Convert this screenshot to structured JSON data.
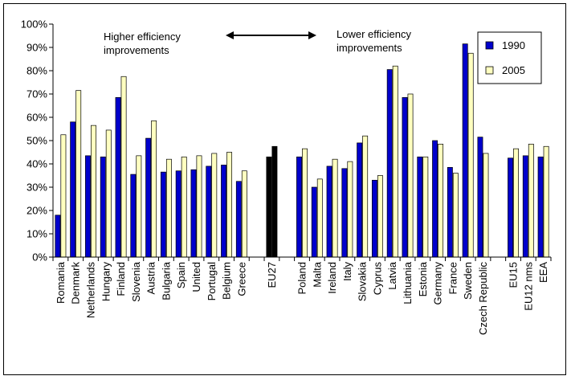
{
  "chart_data": {
    "type": "bar",
    "categories": [
      "Romania",
      "Denmark",
      "Netherlands",
      "Hungary",
      "Finland",
      "Slovenia",
      "Austria",
      "Bulgaria",
      "Spain",
      "United",
      "Portugal",
      "Belgium",
      "Greece",
      "",
      "EU27",
      "",
      "Poland",
      "Malta",
      "Ireland",
      "Italy",
      "Slovakia",
      "Cyprus",
      "Latvia",
      "Lithuania",
      "Estonia",
      "Germany",
      "France",
      "Sweden",
      "Czech Republic",
      "",
      "EU15",
      "EU12 nms",
      "EEA"
    ],
    "series": [
      {
        "name": "1990",
        "color": "#0000cc",
        "values": [
          18,
          58,
          43.5,
          43,
          68.5,
          35.5,
          51,
          36.5,
          37,
          37.5,
          39,
          39.5,
          32.5,
          null,
          43,
          null,
          43,
          30,
          39,
          38,
          49,
          33,
          80.5,
          68.5,
          43,
          50,
          38.5,
          91.5,
          51.5,
          null,
          42.5,
          43.5,
          43
        ]
      },
      {
        "name": "2005",
        "color": "#ffffc0",
        "values": [
          52.5,
          71.5,
          56.5,
          54.5,
          77.5,
          43.5,
          58.5,
          42,
          43,
          43.5,
          44.5,
          45,
          37,
          null,
          47.5,
          null,
          46.5,
          33.5,
          42,
          41,
          52,
          35,
          82,
          70,
          43,
          48.5,
          36,
          87.5,
          44.5,
          null,
          46.5,
          48.5,
          47.5
        ]
      }
    ],
    "highlight_category": "EU27",
    "highlight_series_colors": [
      "#000000",
      "#000000"
    ],
    "ylim": [
      0,
      100
    ],
    "yticks": [
      "0%",
      "10%",
      "20%",
      "30%",
      "40%",
      "50%",
      "60%",
      "70%",
      "80%",
      "90%",
      "100%"
    ],
    "ytick_values": [
      0,
      10,
      20,
      30,
      40,
      50,
      60,
      70,
      80,
      90,
      100
    ],
    "grid": false,
    "legend_position": "top-right",
    "annotations": {
      "left_line1": "Higher efficiency",
      "left_line2": "improvements",
      "right_line1": "Lower efficiency",
      "right_line2": "improvements",
      "arrow": "double-headed"
    }
  }
}
